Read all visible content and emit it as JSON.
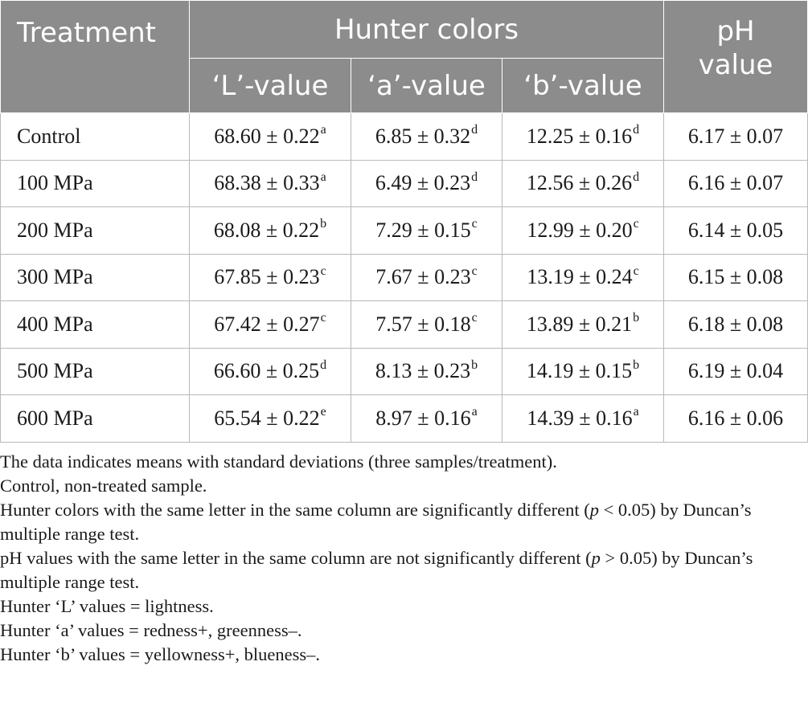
{
  "table": {
    "headers": {
      "treatment": "Treatment",
      "hunter_colors": "Hunter colors",
      "l_value": "‘L’-value",
      "a_value": "‘a’-value",
      "b_value": "‘b’-value",
      "ph_line1": "pH",
      "ph_line2": "value"
    },
    "rows": [
      {
        "treatment": "Control",
        "l": "68.60 ± 0.22",
        "l_sig": "a",
        "a": "6.85 ± 0.32",
        "a_sig": "d",
        "b": "12.25 ± 0.16",
        "b_sig": "d",
        "ph": "6.17 ± 0.07"
      },
      {
        "treatment": "100 MPa",
        "l": "68.38 ± 0.33",
        "l_sig": "a",
        "a": "6.49 ± 0.23",
        "a_sig": "d",
        "b": "12.56 ± 0.26",
        "b_sig": "d",
        "ph": "6.16 ± 0.07"
      },
      {
        "treatment": "200 MPa",
        "l": "68.08 ± 0.22",
        "l_sig": "b",
        "a": "7.29 ± 0.15",
        "a_sig": "c",
        "b": "12.99 ± 0.20",
        "b_sig": "c",
        "ph": "6.14 ± 0.05"
      },
      {
        "treatment": "300 MPa",
        "l": "67.85 ± 0.23",
        "l_sig": "c",
        "a": "7.67 ± 0.23",
        "a_sig": "c",
        "b": "13.19 ± 0.24",
        "b_sig": "c",
        "ph": "6.15 ± 0.08"
      },
      {
        "treatment": "400 MPa",
        "l": "67.42 ± 0.27",
        "l_sig": "c",
        "a": "7.57 ± 0.18",
        "a_sig": "c",
        "b": "13.89 ± 0.21",
        "b_sig": "b",
        "ph": "6.18 ± 0.08"
      },
      {
        "treatment": "500 MPa",
        "l": "66.60 ± 0.25",
        "l_sig": "d",
        "a": "8.13 ± 0.23",
        "a_sig": "b",
        "b": "14.19 ± 0.15",
        "b_sig": "b",
        "ph": "6.19 ± 0.04"
      },
      {
        "treatment": "600 MPa",
        "l": "65.54 ± 0.22",
        "l_sig": "e",
        "a": "8.97 ± 0.16",
        "a_sig": "a",
        "b": "14.39 ± 0.16",
        "b_sig": "a",
        "ph": "6.16 ± 0.06"
      }
    ]
  },
  "notes": {
    "n1": "The data indicates means with standard deviations (three samples/treatment).",
    "n2": "Control, non-treated sample.",
    "n3_pre": "Hunter colors with the same letter in the same column are significantly different (",
    "n3_p": "p",
    "n3_post": " < 0.05) by Duncan’s multiple range test.",
    "n4_pre": "pH values with the same letter in the same column are not significantly different (",
    "n4_p": "p",
    "n4_post": " > 0.05) by Duncan’s multiple range test.",
    "n5": "Hunter ‘L’ values = lightness.",
    "n6": "Hunter ‘a’ values = redness+, greenness–.",
    "n7": "Hunter ‘b’ values = yellowness+, blueness–."
  }
}
